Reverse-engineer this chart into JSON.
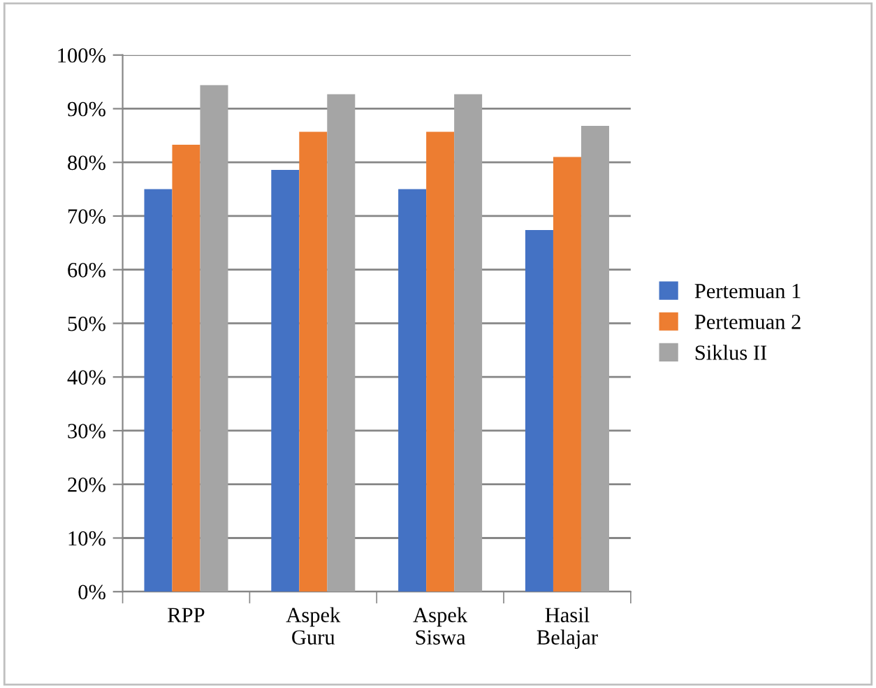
{
  "chart_data": {
    "type": "bar",
    "categories": [
      "RPP",
      "Aspek\nGuru",
      "Aspek\nSiswa",
      "Hasil\nBelajar"
    ],
    "series": [
      {
        "name": "Pertemuan 1",
        "color": "#4472c4",
        "values": [
          75.0,
          78.6,
          75.0,
          67.4
        ]
      },
      {
        "name": "Pertemuan 2",
        "color": "#ed7d31",
        "values": [
          83.3,
          85.7,
          85.7,
          81.0
        ]
      },
      {
        "name": "Siklus II",
        "color": "#a5a5a5",
        "values": [
          94.4,
          92.7,
          92.7,
          86.8
        ]
      }
    ],
    "ylim": [
      0,
      100
    ],
    "yticks": [
      {
        "value": 0,
        "label": "0%"
      },
      {
        "value": 10,
        "label": "10%"
      },
      {
        "value": 20,
        "label": "20%"
      },
      {
        "value": 30,
        "label": "30%"
      },
      {
        "value": 40,
        "label": "40%"
      },
      {
        "value": 50,
        "label": "50%"
      },
      {
        "value": 60,
        "label": "60%"
      },
      {
        "value": 70,
        "label": "70%"
      },
      {
        "value": 80,
        "label": "80%"
      },
      {
        "value": 90,
        "label": "90%"
      },
      {
        "value": 100,
        "label": "100%"
      }
    ],
    "grid": "y",
    "legend": "right"
  }
}
